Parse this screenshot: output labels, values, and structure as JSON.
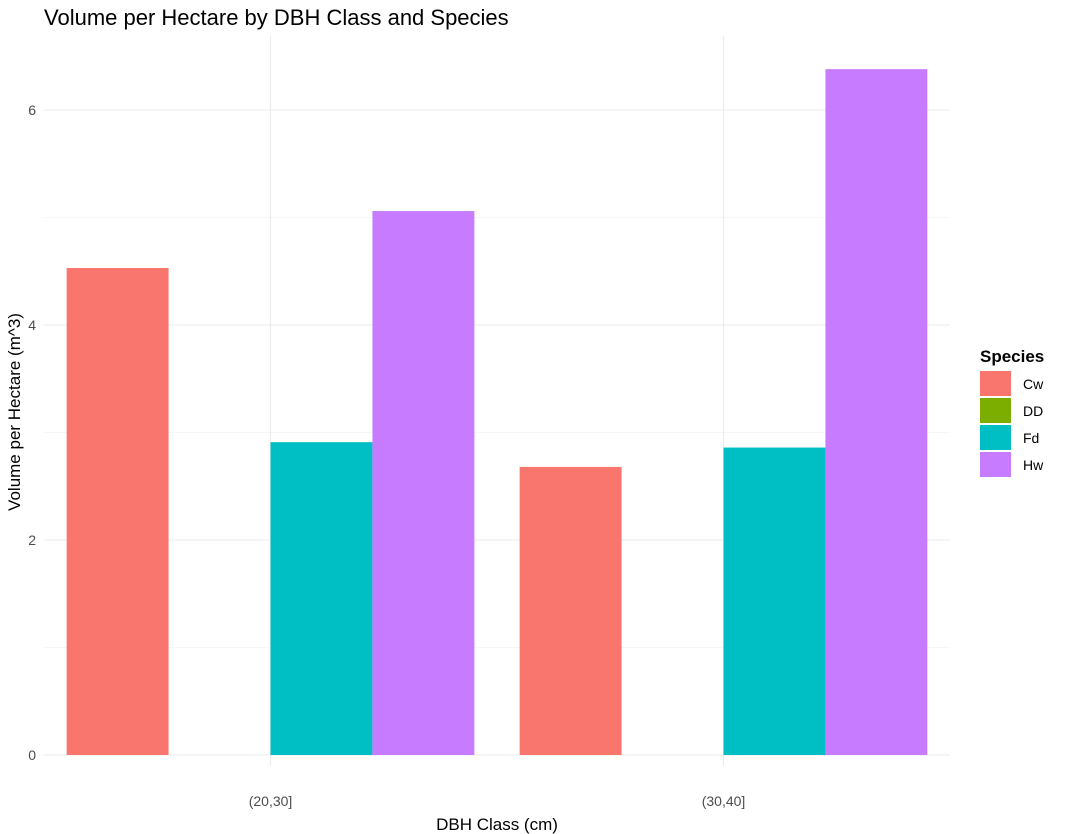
{
  "chart_data": {
    "type": "bar",
    "title": "Volume per Hectare by DBH Class and Species",
    "xlabel": "DBH Class (cm)",
    "ylabel": "Volume per Hectare (m^3)",
    "categories": [
      "(20,30]",
      "(30,40]"
    ],
    "ylim": [
      0,
      6.5
    ],
    "yticks": [
      0,
      2,
      4,
      6
    ],
    "grid": true,
    "legend": {
      "title": "Species",
      "position": "right"
    },
    "series": [
      {
        "name": "Cw",
        "color": "#F8766D",
        "values": [
          4.53,
          2.68
        ]
      },
      {
        "name": "DD",
        "color": "#7CAE00",
        "values": [
          0,
          0
        ]
      },
      {
        "name": "Fd",
        "color": "#00BFC4",
        "values": [
          2.91,
          2.86
        ]
      },
      {
        "name": "Hw",
        "color": "#C77CFF",
        "values": [
          5.06,
          6.38
        ]
      }
    ]
  }
}
